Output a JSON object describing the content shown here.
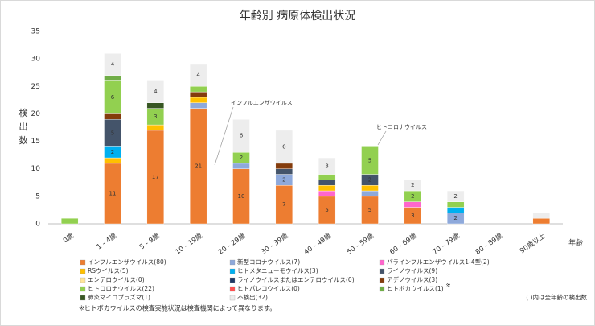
{
  "chart_data": {
    "type": "stacked-bar",
    "title": "年齢別 病原体検出状況",
    "y_label": "検出数",
    "x_label": "年齢",
    "categories": [
      "0歳",
      "1 - 4歳",
      "5 - 9歳",
      "10 - 19歳",
      "20 - 29歳",
      "30 - 39歳",
      "40 - 49歳",
      "50 - 59歳",
      "60 - 69歳",
      "70 - 79歳",
      "80 - 89歳",
      "90歳以上"
    ],
    "ylim": [
      0,
      35
    ],
    "yticks": [
      0,
      5,
      10,
      15,
      20,
      25,
      30,
      35
    ],
    "grid": false,
    "series": [
      {
        "name": "インフルエンザウイルス(80)",
        "color": "#ED7D31",
        "values": [
          0,
          11,
          17,
          21,
          10,
          7,
          5,
          5,
          3,
          0,
          0,
          1
        ]
      },
      {
        "name": "新型コロナウイルス(7)",
        "color": "#8EA9DB",
        "values": [
          0,
          0,
          0,
          1,
          1,
          2,
          0,
          1,
          0,
          2,
          0,
          0
        ]
      },
      {
        "name": "パラインフルエンザウイルス1-4型(2)",
        "color": "#FF66CC",
        "values": [
          0,
          0,
          0,
          0,
          0,
          0,
          1,
          0,
          1,
          0,
          0,
          0
        ]
      },
      {
        "name": "RSウイルス(5)",
        "color": "#FFC000",
        "values": [
          0,
          1,
          1,
          1,
          0,
          0,
          1,
          1,
          0,
          0,
          0,
          0
        ]
      },
      {
        "name": "ヒトメタニューモウイルス(3)",
        "color": "#00B0F0",
        "values": [
          0,
          2,
          0,
          0,
          0,
          0,
          0,
          0,
          0,
          1,
          0,
          0
        ]
      },
      {
        "name": "ライノウイルス(9)",
        "color": "#44546A",
        "values": [
          0,
          5,
          0,
          0,
          0,
          1,
          1,
          2,
          0,
          0,
          0,
          0
        ]
      },
      {
        "name": "エンテロウイルス(0)",
        "color": "#FFE699",
        "values": [
          0,
          0,
          0,
          0,
          0,
          0,
          0,
          0,
          0,
          0,
          0,
          0
        ]
      },
      {
        "name": "ライノウイルスまたはエンテロウイルス(0)",
        "color": "#1F3864",
        "values": [
          0,
          0,
          0,
          0,
          0,
          0,
          0,
          0,
          0,
          0,
          0,
          0
        ]
      },
      {
        "name": "アデノウイルス(3)",
        "color": "#843C0C",
        "values": [
          0,
          1,
          0,
          1,
          0,
          1,
          0,
          0,
          0,
          0,
          0,
          0
        ]
      },
      {
        "name": "ヒトコロナウイルス(22)",
        "color": "#92D050",
        "values": [
          1,
          6,
          3,
          1,
          2,
          0,
          1,
          5,
          2,
          1,
          0,
          0
        ]
      },
      {
        "name": "ヒトパレコウイルス(0)",
        "color": "#FF5050",
        "values": [
          0,
          0,
          0,
          0,
          0,
          0,
          0,
          0,
          0,
          0,
          0,
          0
        ]
      },
      {
        "name": "ヒトボカウイルス(1)",
        "color": "#70AD47",
        "values": [
          0,
          1,
          0,
          0,
          0,
          0,
          0,
          0,
          0,
          0,
          0,
          0
        ]
      },
      {
        "name": "肺炎マイコプラズマ(1)",
        "color": "#375623",
        "values": [
          0,
          0,
          1,
          0,
          0,
          0,
          0,
          0,
          0,
          0,
          0,
          0
        ]
      },
      {
        "name": "不検出(32)",
        "color": "#EDEDED",
        "values": [
          0,
          4,
          4,
          4,
          6,
          6,
          3,
          0,
          2,
          2,
          0,
          1
        ]
      }
    ],
    "annotations": [
      "インフルエンザウイルス",
      "ヒトコロナウイルス"
    ],
    "legend_mark": "※",
    "notes": [
      "( )内は全年齢の検出数",
      "※ヒトボカウイルスの検査実施状況は検査機関によって異なります。"
    ]
  }
}
